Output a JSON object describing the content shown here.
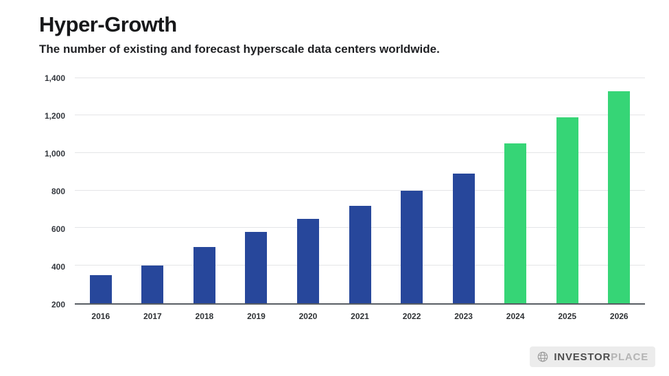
{
  "header": {
    "title": "Hyper-Growth",
    "subtitle": "The number of existing and forecast hyperscale data centers worldwide."
  },
  "chart_data": {
    "type": "bar",
    "title": "Hyper-Growth",
    "subtitle": "The number of existing and forecast hyperscale data centers worldwide.",
    "categories": [
      "2016",
      "2017",
      "2018",
      "2019",
      "2020",
      "2021",
      "2022",
      "2023",
      "2024",
      "2025",
      "2026"
    ],
    "values": [
      350,
      400,
      500,
      580,
      650,
      720,
      800,
      890,
      1050,
      1190,
      1330
    ],
    "ylim": [
      200,
      1400
    ],
    "yticks": [
      200,
      400,
      600,
      800,
      1000,
      1200,
      1400
    ],
    "ytick_labels": [
      "200",
      "400",
      "600",
      "800",
      "1,000",
      "1,200",
      "1,400"
    ],
    "grid": true,
    "legend": "none",
    "colors": {
      "actual": "#27479b",
      "forecast": "#36d576"
    },
    "forecast_from_index": 8,
    "segments": [
      {
        "name": "existing",
        "years": "2016-2023",
        "color": "#27479b"
      },
      {
        "name": "forecast",
        "years": "2024-2026",
        "color": "#36d576"
      }
    ]
  },
  "logo": {
    "icon": "globe-icon",
    "text_primary": "INVESTOR",
    "text_secondary": "PLACE"
  }
}
